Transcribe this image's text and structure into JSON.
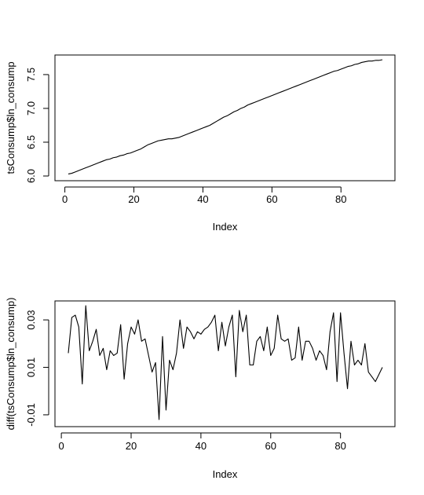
{
  "chart_data": [
    {
      "type": "line",
      "xlabel": "Index",
      "ylabel": "tsConsump$ln_consump",
      "xlim": [
        1,
        92
      ],
      "ylim": [
        6.0,
        7.72
      ],
      "x_ticks": [
        0,
        20,
        40,
        60,
        80
      ],
      "x_tick_labels": [
        "0",
        "20",
        "40",
        "60",
        "80"
      ],
      "y_ticks": [
        6.0,
        6.5,
        7.0,
        7.5
      ],
      "y_tick_labels": [
        "6.0",
        "6.5",
        "7.0",
        "7.5"
      ],
      "series": [
        {
          "x_start": 1,
          "values": [
            6.03,
            6.04,
            6.06,
            6.08,
            6.1,
            6.12,
            6.14,
            6.16,
            6.18,
            6.2,
            6.22,
            6.24,
            6.25,
            6.27,
            6.28,
            6.3,
            6.31,
            6.33,
            6.34,
            6.36,
            6.38,
            6.4,
            6.43,
            6.46,
            6.48,
            6.5,
            6.52,
            6.53,
            6.54,
            6.55,
            6.55,
            6.56,
            6.57,
            6.59,
            6.61,
            6.63,
            6.65,
            6.67,
            6.69,
            6.71,
            6.73,
            6.75,
            6.78,
            6.81,
            6.84,
            6.87,
            6.89,
            6.92,
            6.95,
            6.97,
            7.0,
            7.02,
            7.05,
            7.07,
            7.09,
            7.11,
            7.13,
            7.15,
            7.17,
            7.19,
            7.21,
            7.23,
            7.25,
            7.27,
            7.29,
            7.31,
            7.33,
            7.35,
            7.37,
            7.39,
            7.41,
            7.43,
            7.45,
            7.47,
            7.49,
            7.51,
            7.53,
            7.55,
            7.56,
            7.58,
            7.6,
            7.62,
            7.63,
            7.65,
            7.66,
            7.68,
            7.69,
            7.7,
            7.7,
            7.71,
            7.71,
            7.72
          ]
        }
      ]
    },
    {
      "type": "line",
      "xlabel": "Index",
      "ylabel": "diff(tsConsump$ln_consump)",
      "xlim": [
        2,
        92
      ],
      "ylim": [
        -0.013,
        0.036
      ],
      "x_ticks": [
        0,
        20,
        40,
        60,
        80
      ],
      "x_tick_labels": [
        "0",
        "20",
        "40",
        "60",
        "80"
      ],
      "y_ticks": [
        -0.01,
        0.01,
        0.03
      ],
      "y_tick_labels": [
        "-0.01",
        "0.01",
        "0.03"
      ],
      "series": [
        {
          "x_start": 2,
          "values": [
            0.016,
            0.031,
            0.032,
            0.027,
            0.003,
            0.036,
            0.017,
            0.021,
            0.026,
            0.015,
            0.018,
            0.009,
            0.017,
            0.015,
            0.016,
            0.028,
            0.005,
            0.02,
            0.027,
            0.024,
            0.03,
            0.021,
            0.022,
            0.015,
            0.008,
            0.012,
            -0.012,
            0.023,
            -0.008,
            0.013,
            0.009,
            0.016,
            0.03,
            0.018,
            0.027,
            0.025,
            0.022,
            0.025,
            0.024,
            0.026,
            0.027,
            0.029,
            0.032,
            0.017,
            0.029,
            0.019,
            0.027,
            0.032,
            0.006,
            0.034,
            0.025,
            0.032,
            0.011,
            0.011,
            0.021,
            0.023,
            0.017,
            0.027,
            0.015,
            0.018,
            0.032,
            0.022,
            0.021,
            0.022,
            0.013,
            0.014,
            0.027,
            0.013,
            0.021,
            0.021,
            0.018,
            0.013,
            0.017,
            0.015,
            0.009,
            0.025,
            0.033,
            0.004,
            0.033,
            0.016,
            0.001,
            0.021,
            0.011,
            0.013,
            0.011,
            0.02,
            0.008,
            0.006,
            0.004,
            0.007,
            0.01
          ]
        }
      ]
    }
  ]
}
